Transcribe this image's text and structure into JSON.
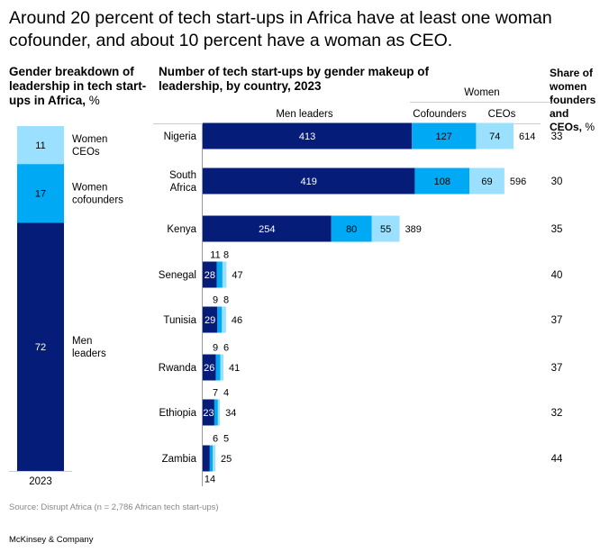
{
  "title": "Around 20 percent of tech start-ups in Africa have at least one woman cofounder, and about 10 percent have a woman as CEO.",
  "left_panel": {
    "heading": "Gender breakdown of leadership in tech start-ups in Africa,",
    "heading_unit": "%"
  },
  "middle_panel": {
    "heading": "Number of tech start-ups by gender makeup of leadership, by country, 2023",
    "group_header": "Women",
    "column_headers": [
      "Men leaders",
      "Cofounders",
      "CEOs"
    ]
  },
  "right_panel": {
    "heading": "Share of women founders and CEOs,",
    "heading_unit": "%"
  },
  "colors": {
    "men": "#051C78",
    "cofounders": "#00A9F4",
    "ceos": "#9BE1FF",
    "axis": "#cccccc"
  },
  "source": "Source: Disrupt Africa (n = 2,786 African tech start-ups)",
  "brand": "McKinsey & Company",
  "chart_data": [
    {
      "type": "bar",
      "subtype": "stacked-100",
      "title": "Gender breakdown of leadership in tech start-ups in Africa, %",
      "categories": [
        "2023"
      ],
      "series": [
        {
          "name": "Men leaders",
          "values": [
            72
          ]
        },
        {
          "name": "Women cofounders",
          "values": [
            17
          ]
        },
        {
          "name": "Women CEOs",
          "values": [
            11
          ]
        }
      ],
      "series_labels": [
        "Men leaders",
        "Women cofounders",
        "Women CEOs"
      ],
      "ylim": [
        0,
        100
      ]
    },
    {
      "type": "bar",
      "subtype": "stacked-horizontal",
      "title": "Number of tech start-ups by gender makeup of leadership, by country, 2023",
      "categories": [
        "Nigeria",
        "South Africa",
        "Kenya",
        "Senegal",
        "Tunisia",
        "Rwanda",
        "Ethiopia",
        "Zambia"
      ],
      "series": [
        {
          "name": "Men leaders",
          "values": [
            413,
            419,
            254,
            28,
            29,
            26,
            23,
            14
          ]
        },
        {
          "name": "Women cofounders",
          "values": [
            127,
            108,
            80,
            11,
            9,
            9,
            7,
            6
          ]
        },
        {
          "name": "Women CEOs",
          "values": [
            74,
            69,
            55,
            8,
            8,
            6,
            4,
            5
          ]
        }
      ],
      "totals": [
        614,
        596,
        389,
        47,
        46,
        41,
        34,
        25
      ],
      "share_women_pct": [
        33,
        30,
        35,
        40,
        37,
        37,
        32,
        44
      ],
      "share_label": "Share of women founders and CEOs, %",
      "xlim": [
        0,
        614
      ]
    }
  ]
}
